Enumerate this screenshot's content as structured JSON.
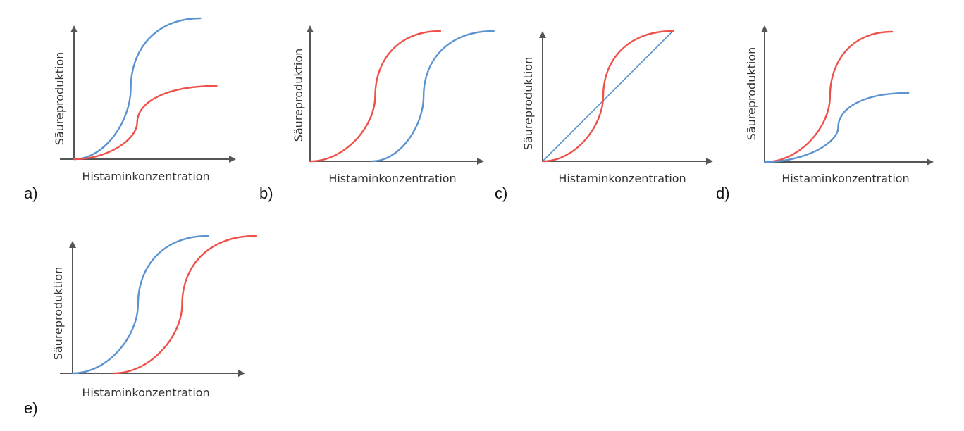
{
  "colors": {
    "red": "#f0504a",
    "blue": "#5b93d0",
    "axis": "#555555"
  },
  "chart_data": [
    {
      "panel": "a)",
      "type": "line",
      "xlabel": "Histaminkonzentration",
      "ylabel": "Säureproduktion",
      "xlim": [
        0,
        1
      ],
      "ylim": [
        0,
        1
      ],
      "grid": false,
      "series": [
        {
          "color": "blue",
          "shape": "sigmoid",
          "x0": 0.0,
          "x1": 0.78,
          "ymin": 0.0,
          "ymax": 1.0,
          "bend": 0.35
        },
        {
          "color": "red",
          "shape": "sigmoid",
          "x0": 0.0,
          "x1": 0.88,
          "ymin": 0.0,
          "ymax": 0.52,
          "bend": 0.39
        }
      ]
    },
    {
      "panel": "b)",
      "type": "line",
      "xlabel": "Histaminkonzentration",
      "ylabel": "Säureproduktion",
      "xlim": [
        0,
        1
      ],
      "ylim": [
        0,
        1
      ],
      "grid": false,
      "series": [
        {
          "color": "red",
          "shape": "sigmoid",
          "x0": 0.0,
          "x1": 0.78,
          "ymin": 0.0,
          "ymax": 1.0,
          "bend": 0.39
        },
        {
          "color": "blue",
          "shape": "sigmoid",
          "x0": 0.37,
          "x1": 1.1,
          "ymin": 0.0,
          "ymax": 1.0,
          "bend": 0.68
        }
      ]
    },
    {
      "panel": "c)",
      "type": "line",
      "xlabel": "Histaminkonzentration",
      "ylabel": "Säureproduktion",
      "xlim": [
        0,
        1
      ],
      "ylim": [
        0,
        1
      ],
      "grid": false,
      "series": [
        {
          "color": "blue",
          "shape": "linear",
          "x0": 0.0,
          "x1": 0.86,
          "ymin": 0.0,
          "ymax": 1.0,
          "thin": true
        },
        {
          "color": "red",
          "shape": "sigmoid",
          "x0": 0.0,
          "x1": 0.86,
          "ymin": 0.0,
          "ymax": 1.0,
          "bend": 0.4
        }
      ]
    },
    {
      "panel": "d)",
      "type": "line",
      "xlabel": "Histaminkonzentration",
      "ylabel": "Säureproduktion",
      "xlim": [
        0,
        1
      ],
      "ylim": [
        0,
        1
      ],
      "grid": false,
      "series": [
        {
          "color": "red",
          "shape": "sigmoid",
          "x0": 0.0,
          "x1": 0.78,
          "ymin": 0.0,
          "ymax": 1.0,
          "bend": 0.4
        },
        {
          "color": "blue",
          "shape": "sigmoid",
          "x0": 0.0,
          "x1": 0.88,
          "ymin": 0.0,
          "ymax": 0.53,
          "bend": 0.45
        }
      ]
    },
    {
      "panel": "e)",
      "type": "line",
      "xlabel": "Histaminkonzentration",
      "ylabel": "Säureproduktion",
      "xlim": [
        0,
        1
      ],
      "ylim": [
        0,
        1
      ],
      "grid": false,
      "series": [
        {
          "color": "blue",
          "shape": "sigmoid",
          "x0": 0.0,
          "x1": 0.83,
          "ymin": 0.0,
          "ymax": 1.0,
          "bend": 0.4
        },
        {
          "color": "red",
          "shape": "sigmoid",
          "x0": 0.25,
          "x1": 1.12,
          "ymin": 0.0,
          "ymax": 1.0,
          "bend": 0.67
        }
      ]
    }
  ]
}
